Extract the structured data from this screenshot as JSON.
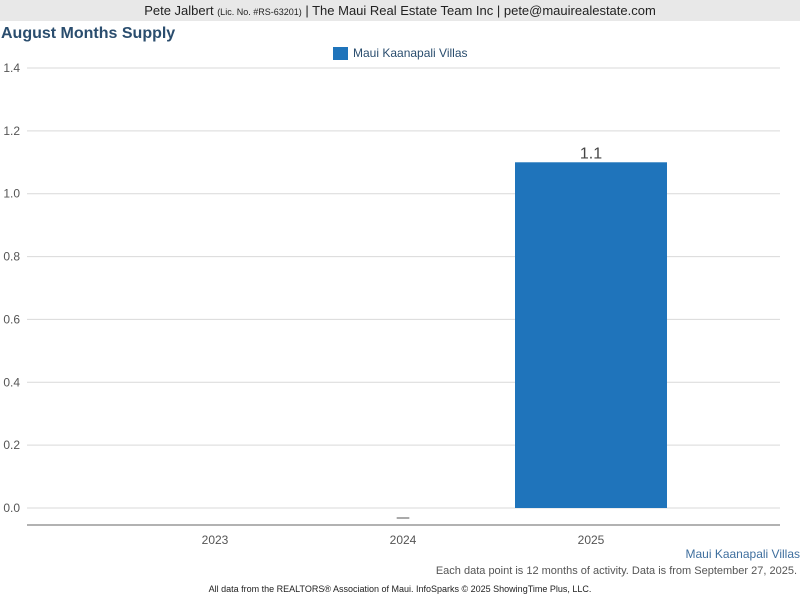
{
  "header": {
    "agent_name": "Pete Jalbert",
    "license": "(Lic. No. #RS-63201)",
    "company": "| The Maui Real Estate Team Inc |",
    "email": "pete@mauirealestate.com"
  },
  "chart_data": {
    "type": "bar",
    "title": "August Months Supply",
    "categories": [
      "2023",
      "2024",
      "2025"
    ],
    "series": [
      {
        "name": "Maui Kaanapali Villas",
        "values": [
          null,
          null,
          1.1
        ],
        "color": "#1f74bb"
      }
    ],
    "missing_marker": "—",
    "data_labels": [
      "",
      "",
      "1.1"
    ],
    "ylim": [
      0,
      1.4
    ],
    "yticks": [
      "0.0",
      "0.2",
      "0.4",
      "0.6",
      "0.8",
      "1.0",
      "1.2",
      "1.4"
    ],
    "ytick_values": [
      0,
      0.2,
      0.4,
      0.6,
      0.8,
      1.0,
      1.2,
      1.4
    ],
    "grid": true,
    "legend_position": "top-center",
    "xlabel": "",
    "ylabel": ""
  },
  "region_label": "Maui Kaanapali Villas",
  "note": "Each data point is 12 months of activity. Data is from September 27, 2025.",
  "footer": "All data from the REALTORS® Association of Maui. InfoSparks © 2025 ShowingTime Plus, LLC."
}
